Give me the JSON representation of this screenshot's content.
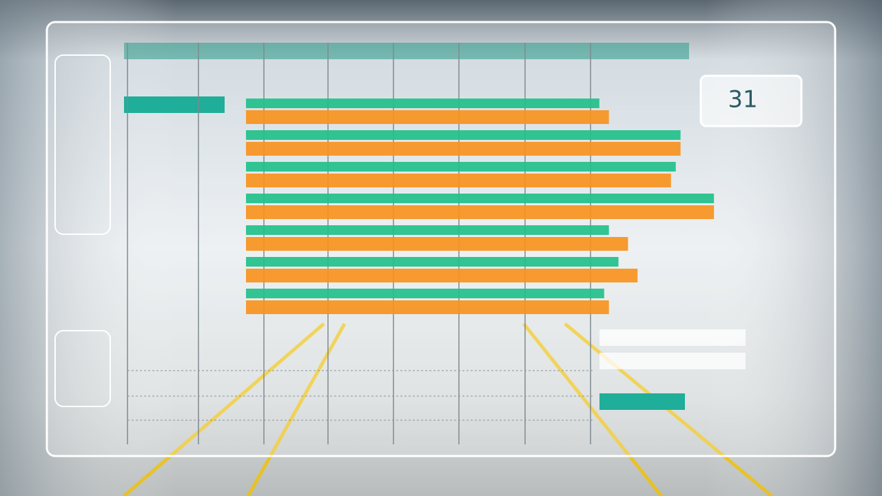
{
  "chart_data": {
    "type": "bar",
    "orientation": "horizontal",
    "categories": [
      null,
      null,
      null,
      null,
      null,
      null,
      null
    ],
    "xlim": [
      0,
      100
    ],
    "kpi": "31",
    "series": [
      {
        "color": "#22c08a",
        "values": [
          74,
          91,
          90,
          98,
          76,
          78,
          75
        ]
      },
      {
        "color": "#f7921f",
        "values": [
          76,
          91,
          89,
          98,
          80,
          82,
          76
        ]
      }
    ]
  }
}
